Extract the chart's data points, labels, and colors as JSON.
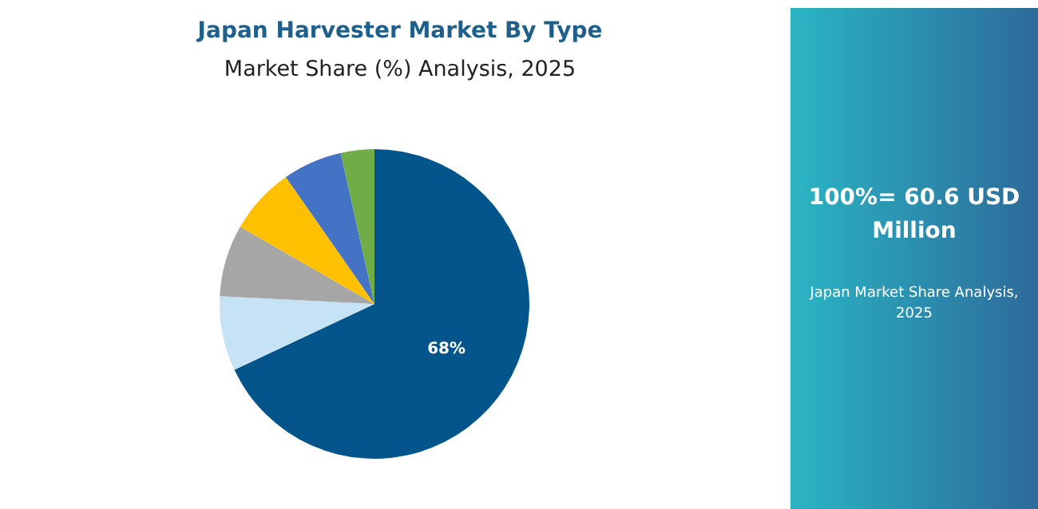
{
  "chart_data": {
    "type": "pie",
    "title": "Japan Harvester Market By Type",
    "subtitle": "Market Share (%) Analysis, 2025",
    "categories": [
      null,
      null,
      null,
      null,
      null,
      null
    ],
    "values": [
      68,
      7.8,
      7.5,
      7,
      6.2,
      3.5
    ],
    "colors": [
      "#03558b",
      "#c5e3f5",
      "#a6a6a6",
      "#ffc000",
      "#4472c4",
      "#70ad47"
    ],
    "value_labels": [
      "68%",
      null,
      null,
      null,
      null,
      null
    ],
    "annotations": [
      "100%= 60.6 USD Million",
      "Japan Market Share Analysis, 2025"
    ]
  }
}
